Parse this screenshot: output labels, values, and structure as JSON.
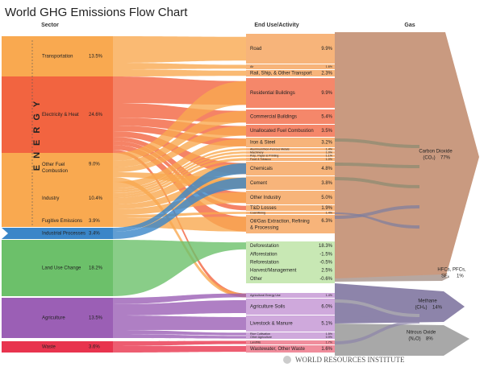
{
  "title": "World GHG Emissions Flow Chart",
  "headers": {
    "sector": "Sector",
    "end_use": "End Use/Activity",
    "gas": "Gas"
  },
  "energy_label": "ENERGY",
  "sectors": [
    {
      "label": "Transportation",
      "value": "13.5%"
    },
    {
      "label": "Electricity & Heat",
      "value": "24.6%"
    },
    {
      "label": "Other Fuel Combustion",
      "value": "9.0%"
    },
    {
      "label": "Industry",
      "value": "10.4%"
    },
    {
      "label": "Fugitive Emissions",
      "value": "3.9%"
    },
    {
      "label": "Industrial Processes",
      "value": "3.4%"
    },
    {
      "label": "Land Use Change",
      "value": "18.2%"
    },
    {
      "label": "Agriculture",
      "value": "13.5%"
    },
    {
      "label": "Waste",
      "value": "3.6%"
    }
  ],
  "end_uses": [
    {
      "label": "Road",
      "value": "9.9%"
    },
    {
      "label": "Air",
      "value": "1.6%"
    },
    {
      "label": "Rail, Ship, & Other Transport",
      "value": "2.3%"
    },
    {
      "label": "Residential Buildings",
      "value": "9.9%"
    },
    {
      "label": "Commercial Buildings",
      "value": "5.4%"
    },
    {
      "label": "Unallocated Fuel Combustion",
      "value": "3.5%"
    },
    {
      "label": "Iron & Steel",
      "value": "3.2%"
    },
    {
      "label": "Aluminum/Non-Ferrous Metals",
      "value": "1.4%"
    },
    {
      "label": "Machinery",
      "value": "1.0%"
    },
    {
      "label": "Pulp, Paper & Printing",
      "value": "1.1%"
    },
    {
      "label": "Food & Tobacco",
      "value": "1.0%"
    },
    {
      "label": "Chemicals",
      "value": "4.8%"
    },
    {
      "label": "Cement",
      "value": "3.8%"
    },
    {
      "label": "Other Industry",
      "value": "5.0%"
    },
    {
      "label": "T&D Losses",
      "value": "1.9%"
    },
    {
      "label": "Coal Mining",
      "value": "1.4%"
    },
    {
      "label": "Oil/Gas Extraction, Refining & Processing",
      "value": "6.3%"
    },
    {
      "label": "Deforestation",
      "value": "18.3%"
    },
    {
      "label": "Afforestation",
      "value": "-1.5%"
    },
    {
      "label": "Reforestation",
      "value": "-0.5%"
    },
    {
      "label": "Harvest/Management",
      "value": "2.5%"
    },
    {
      "label": "Other",
      "value": "-0.6%"
    },
    {
      "label": "Agricultural Energy Use",
      "value": "1.4%"
    },
    {
      "label": "Agriculture Soils",
      "value": "6.0%"
    },
    {
      "label": "Livestock & Manure",
      "value": "5.1%"
    },
    {
      "label": "Rice Cultivation",
      "value": "1.5%"
    },
    {
      "label": "Other Agriculture",
      "value": "0.9%"
    },
    {
      "label": "Landfills",
      "value": "1.7%"
    },
    {
      "label": "Wastewater, Other Waste",
      "value": "1.6%"
    }
  ],
  "gases": [
    {
      "label": "Carbon Dioxide",
      "formula": "(CO₂)",
      "value": "77%"
    },
    {
      "label": "HFCs, PFCs,",
      "formula": "SF₆",
      "value": "1%"
    },
    {
      "label": "Methane",
      "formula": "(CH₄)",
      "value": "14%"
    },
    {
      "label": "Nitrous Oxide",
      "formula": "(N₂O)",
      "value": "8%"
    }
  ],
  "footer": "WORLD RESOURCES INSTITUTE"
}
